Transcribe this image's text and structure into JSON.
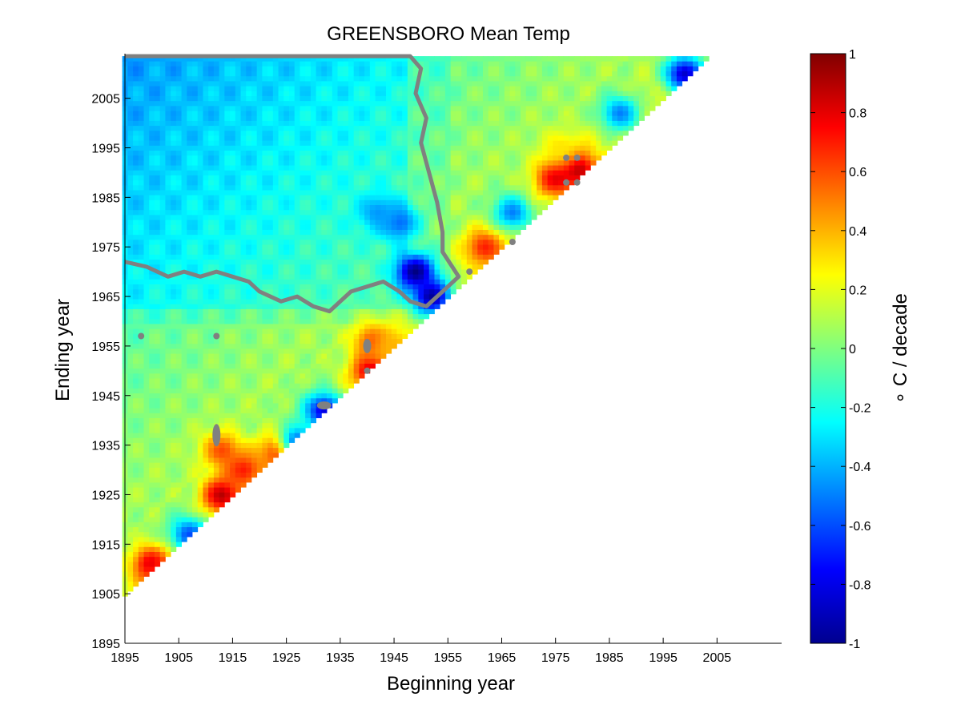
{
  "chart_data": {
    "type": "heatmap",
    "title": "GREENSBORO Mean Temp",
    "xlabel": "Beginning year",
    "ylabel": "Ending year",
    "colorbar_label": "∘ C / decade",
    "xlim": [
      1895,
      2017
    ],
    "ylim": [
      1895,
      2014
    ],
    "x_ticks": [
      1895,
      1905,
      1915,
      1925,
      1935,
      1945,
      1955,
      1965,
      1975,
      1985,
      1995,
      2005
    ],
    "y_ticks": [
      1895,
      1905,
      1915,
      1925,
      1935,
      1945,
      1955,
      1965,
      1975,
      1985,
      1995,
      2005
    ],
    "colorbar_ticks": [
      -1,
      -0.8,
      -0.6,
      -0.4,
      -0.2,
      0,
      0.2,
      0.4,
      0.6,
      0.8,
      1
    ],
    "color_range": [
      -1,
      1
    ],
    "colormap": "jet",
    "contour_color": "#808080",
    "grid": false,
    "hotspots": [
      {
        "begin": 1900,
        "end": 1911,
        "value": 0.85
      },
      {
        "begin": 1903,
        "end": 1908,
        "value": 0.6
      },
      {
        "begin": 1907,
        "end": 1917,
        "value": -0.6
      },
      {
        "begin": 1913,
        "end": 1925,
        "value": 0.9
      },
      {
        "begin": 1913,
        "end": 1934,
        "value": 0.6
      },
      {
        "begin": 1917,
        "end": 1930,
        "value": 0.7
      },
      {
        "begin": 1924,
        "end": 1934,
        "value": 0.85
      },
      {
        "begin": 1927,
        "end": 1936,
        "value": -0.5
      },
      {
        "begin": 1932,
        "end": 1942,
        "value": -0.8
      },
      {
        "begin": 1941,
        "end": 1950,
        "value": 0.9
      },
      {
        "begin": 1941,
        "end": 1956,
        "value": 0.6
      },
      {
        "begin": 1945,
        "end": 1955,
        "value": 0.4
      },
      {
        "begin": 1949,
        "end": 1970,
        "value": -1.0
      },
      {
        "begin": 1952,
        "end": 1965,
        "value": -0.95
      },
      {
        "begin": 1946,
        "end": 1980,
        "value": -0.55
      },
      {
        "begin": 1942,
        "end": 1982,
        "value": -0.45
      },
      {
        "begin": 1962,
        "end": 1975,
        "value": 0.7
      },
      {
        "begin": 1967,
        "end": 1982,
        "value": -0.5
      },
      {
        "begin": 1975,
        "end": 1989,
        "value": 0.8
      },
      {
        "begin": 1979,
        "end": 1991,
        "value": 0.95
      },
      {
        "begin": 1976,
        "end": 1995,
        "value": 0.3
      },
      {
        "begin": 1987,
        "end": 2002,
        "value": -0.5
      },
      {
        "begin": 1999,
        "end": 2010,
        "value": -0.85
      }
    ]
  }
}
